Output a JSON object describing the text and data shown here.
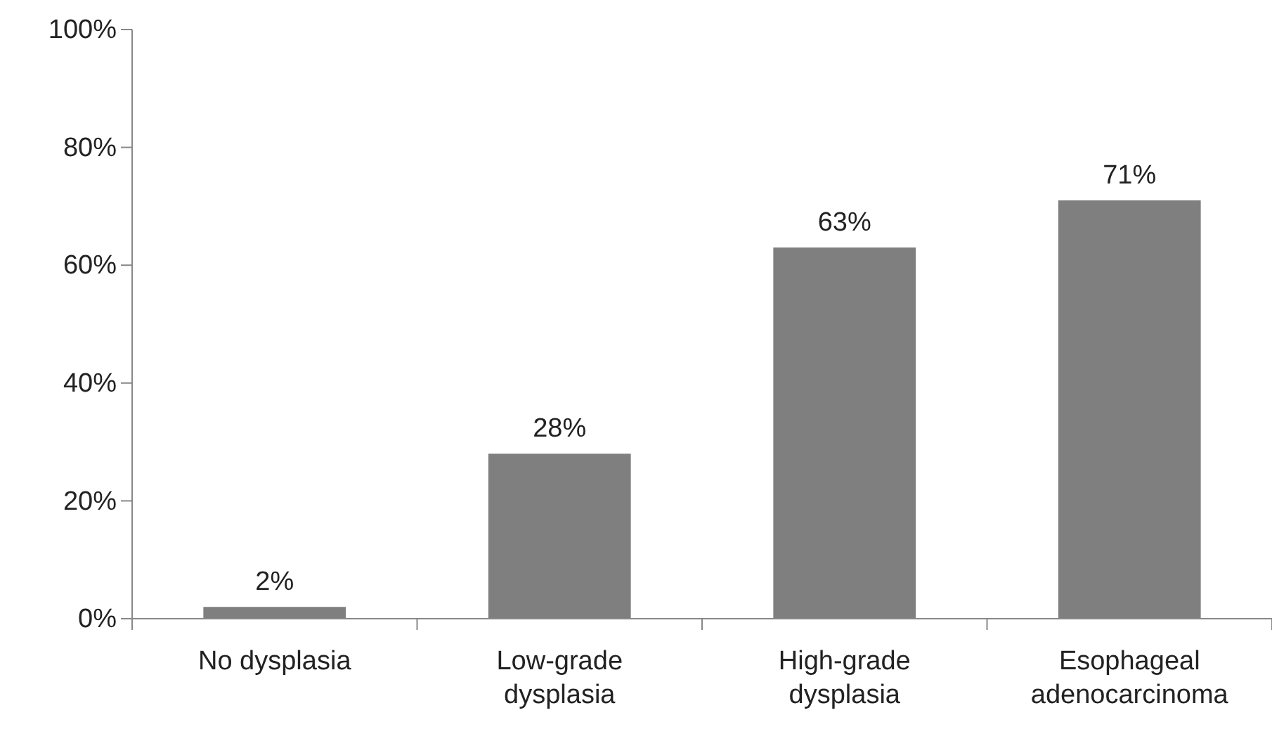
{
  "chart_data": {
    "type": "bar",
    "categories": [
      "No dysplasia",
      "Low-grade dysplasia",
      "High-grade dysplasia",
      "Esophageal adenocarcinoma"
    ],
    "values": [
      2,
      28,
      63,
      71
    ],
    "value_labels": [
      "2%",
      "28%",
      "63%",
      "71%"
    ],
    "color": "#7f7f7f",
    "ylim": [
      0,
      100
    ],
    "yticks": [
      {
        "value": 0,
        "label": "0%"
      },
      {
        "value": 20,
        "label": "20%"
      },
      {
        "value": 40,
        "label": "40%"
      },
      {
        "value": 60,
        "label": "60%"
      },
      {
        "value": 80,
        "label": "80%"
      },
      {
        "value": 100,
        "label": "100%"
      }
    ],
    "grid": false
  }
}
